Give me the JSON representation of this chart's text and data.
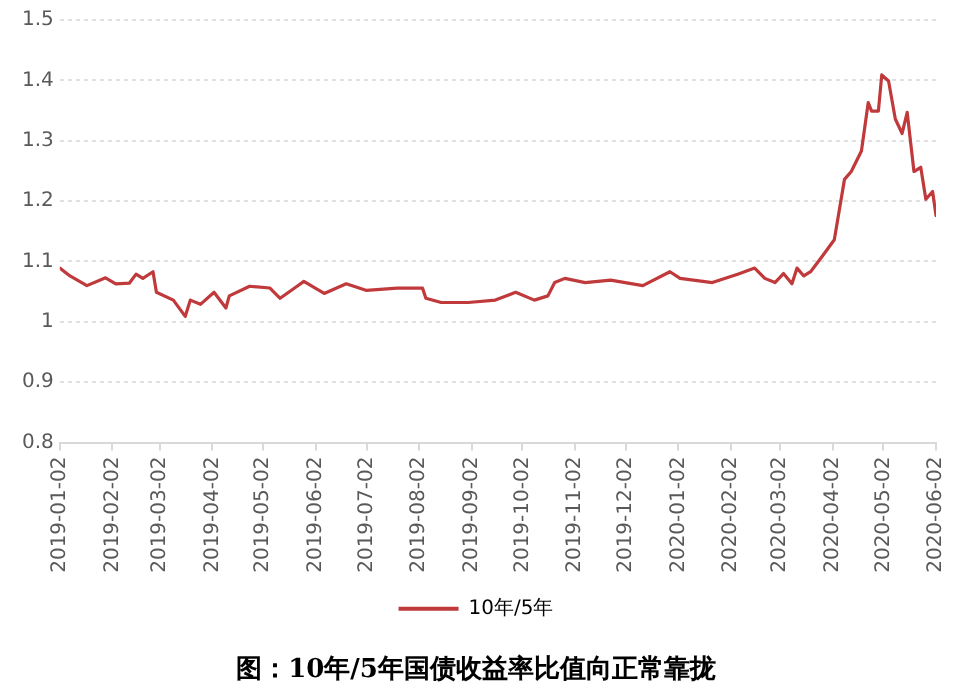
{
  "chart_data": {
    "type": "line",
    "title": "图：10年/5年国债收益率比值向正常靠拢",
    "x": [
      "2019-01-02",
      "2019-01-08",
      "2019-01-18",
      "2019-01-29",
      "2019-02-04",
      "2019-02-12",
      "2019-02-16",
      "2019-02-20",
      "2019-02-26",
      "2019-02-28",
      "2019-03-10",
      "2019-03-17",
      "2019-03-20",
      "2019-03-26",
      "2019-04-03",
      "2019-04-10",
      "2019-04-12",
      "2019-04-24",
      "2019-05-06",
      "2019-05-12",
      "2019-05-22",
      "2019-05-26",
      "2019-06-07",
      "2019-06-20",
      "2019-07-02",
      "2019-07-20",
      "2019-08-04",
      "2019-08-06",
      "2019-08-15",
      "2019-08-31",
      "2019-09-16",
      "2019-09-28",
      "2019-10-09",
      "2019-10-17",
      "2019-10-21",
      "2019-10-27",
      "2019-11-08",
      "2019-11-23",
      "2019-12-12",
      "2019-12-28",
      "2020-01-03",
      "2020-01-22",
      "2020-02-06",
      "2020-02-16",
      "2020-02-22",
      "2020-02-28",
      "2020-03-04",
      "2020-03-09",
      "2020-03-12",
      "2020-03-16",
      "2020-03-20",
      "2020-03-27",
      "2020-04-03",
      "2020-04-09",
      "2020-04-13",
      "2020-04-19",
      "2020-04-23",
      "2020-04-25",
      "2020-04-29",
      "2020-05-01",
      "2020-05-05",
      "2020-05-09",
      "2020-05-13",
      "2020-05-16",
      "2020-05-20",
      "2020-05-24",
      "2020-05-27",
      "2020-05-31",
      "2020-06-02"
    ],
    "series": [
      {
        "name": "10年/5年",
        "color": "#c0393b",
        "values": [
          1.089,
          1.076,
          1.06,
          1.073,
          1.063,
          1.064,
          1.079,
          1.072,
          1.083,
          1.049,
          1.036,
          1.009,
          1.036,
          1.029,
          1.049,
          1.023,
          1.043,
          1.059,
          1.056,
          1.039,
          1.059,
          1.067,
          1.047,
          1.063,
          1.052,
          1.056,
          1.056,
          1.039,
          1.032,
          1.032,
          1.036,
          1.049,
          1.036,
          1.043,
          1.065,
          1.072,
          1.065,
          1.069,
          1.06,
          1.083,
          1.072,
          1.065,
          1.079,
          1.089,
          1.072,
          1.065,
          1.08,
          1.063,
          1.089,
          1.076,
          1.083,
          1.109,
          1.136,
          1.236,
          1.249,
          1.283,
          1.363,
          1.349,
          1.349,
          1.409,
          1.399,
          1.336,
          1.312,
          1.347,
          1.249,
          1.256,
          1.203,
          1.216,
          1.176
        ]
      }
    ],
    "xlim": [
      "2019-01-02",
      "2020-06-02"
    ],
    "xticks": [
      {
        "value": "2019-01-02",
        "label": "2019-01-02"
      },
      {
        "value": "2019-02-02",
        "label": "2019-02-02"
      },
      {
        "value": "2019-03-02",
        "label": "2019-03-02"
      },
      {
        "value": "2019-04-02",
        "label": "2019-04-02"
      },
      {
        "value": "2019-05-02",
        "label": "2019-05-02"
      },
      {
        "value": "2019-06-02",
        "label": "2019-06-02"
      },
      {
        "value": "2019-07-02",
        "label": "2019-07-02"
      },
      {
        "value": "2019-08-02",
        "label": "2019-08-02"
      },
      {
        "value": "2019-09-02",
        "label": "2019-09-02"
      },
      {
        "value": "2019-10-02",
        "label": "2019-10-02"
      },
      {
        "value": "2019-11-02",
        "label": "2019-11-02"
      },
      {
        "value": "2019-12-02",
        "label": "2019-12-02"
      },
      {
        "value": "2020-01-02",
        "label": "2020-01-02"
      },
      {
        "value": "2020-02-02",
        "label": "2020-02-02"
      },
      {
        "value": "2020-03-02",
        "label": "2020-03-02"
      },
      {
        "value": "2020-04-02",
        "label": "2020-04-02"
      },
      {
        "value": "2020-05-02",
        "label": "2020-05-02"
      },
      {
        "value": "2020-06-02",
        "label": "2020-06-02"
      }
    ],
    "ylim": [
      0.8,
      1.5
    ],
    "yticks": [
      {
        "value": 0.8,
        "label": "0.8"
      },
      {
        "value": 0.9,
        "label": "0.9"
      },
      {
        "value": 1,
        "label": "1"
      },
      {
        "value": 1.1,
        "label": "1.1"
      },
      {
        "value": 1.2,
        "label": "1.2"
      },
      {
        "value": 1.3,
        "label": "1.3"
      },
      {
        "value": 1.4,
        "label": "1.4"
      },
      {
        "value": 1.5,
        "label": "1.5"
      }
    ],
    "grid": "y",
    "legend": "bottom",
    "marker": "none",
    "line_style": "solid"
  }
}
